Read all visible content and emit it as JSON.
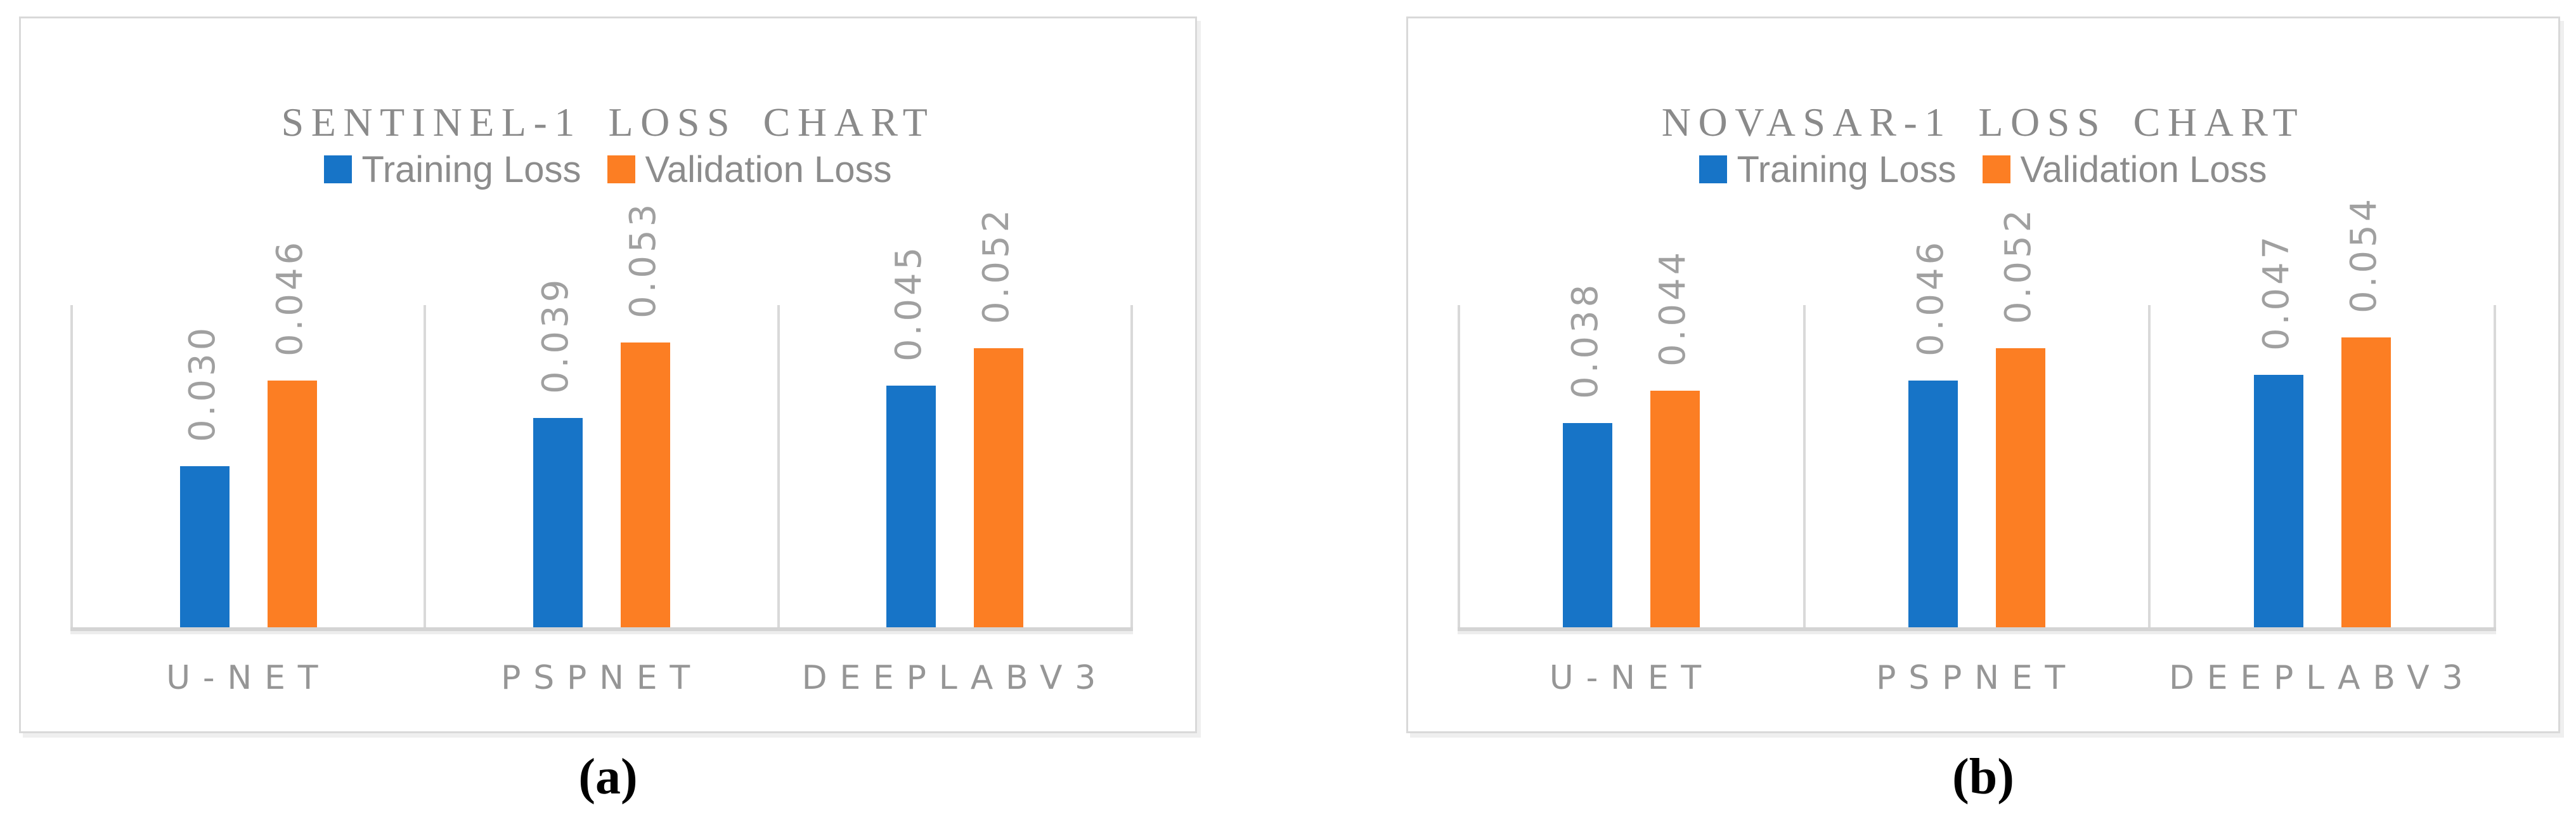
{
  "captions": {
    "a": "(a)",
    "b": "(b)"
  },
  "colors": {
    "training": "#1774C7",
    "validation": "#FC7E23",
    "gridline": "#D9D9D9",
    "axis_line": "#D4D4D4",
    "panel_border": "#D9D9D9",
    "title_text": "#8A8A8A",
    "legend_text": "#8C8C8C",
    "value_label_text": "#A0A0A0",
    "category_text": "#969696"
  },
  "chart_data": [
    {
      "type": "bar",
      "title": "SENTINEL-1 LOSS CHART",
      "categories": [
        "U-NET",
        "PSPNET",
        "DEEPLABV3"
      ],
      "series": [
        {
          "name": "Training Loss",
          "values": [
            0.03,
            0.039,
            0.045
          ]
        },
        {
          "name": "Validation Loss",
          "values": [
            0.046,
            0.053,
            0.052
          ]
        }
      ],
      "data_labels": [
        [
          "0.030",
          "0.039",
          "0.045"
        ],
        [
          "0.046",
          "0.053",
          "0.052"
        ]
      ],
      "xlabel": "",
      "ylabel": "",
      "ylim": [
        0,
        0.06
      ],
      "value_label_format": "0.000",
      "legend_position": "top",
      "grid": "vertical-category-separators-only"
    },
    {
      "type": "bar",
      "title": "NOVASAR-1 LOSS CHART",
      "categories": [
        "U-NET",
        "PSPNET",
        "DEEPLABV3"
      ],
      "series": [
        {
          "name": "Training Loss",
          "values": [
            0.038,
            0.046,
            0.047
          ]
        },
        {
          "name": "Validation Loss",
          "values": [
            0.044,
            0.052,
            0.054
          ]
        }
      ],
      "data_labels": [
        [
          "0.038",
          "0.046",
          "0.047"
        ],
        [
          "0.044",
          "0.052",
          "0.054"
        ]
      ],
      "xlabel": "",
      "ylabel": "",
      "ylim": [
        0,
        0.06
      ],
      "value_label_format": "0.000",
      "legend_position": "top",
      "grid": "vertical-category-separators-only"
    }
  ]
}
